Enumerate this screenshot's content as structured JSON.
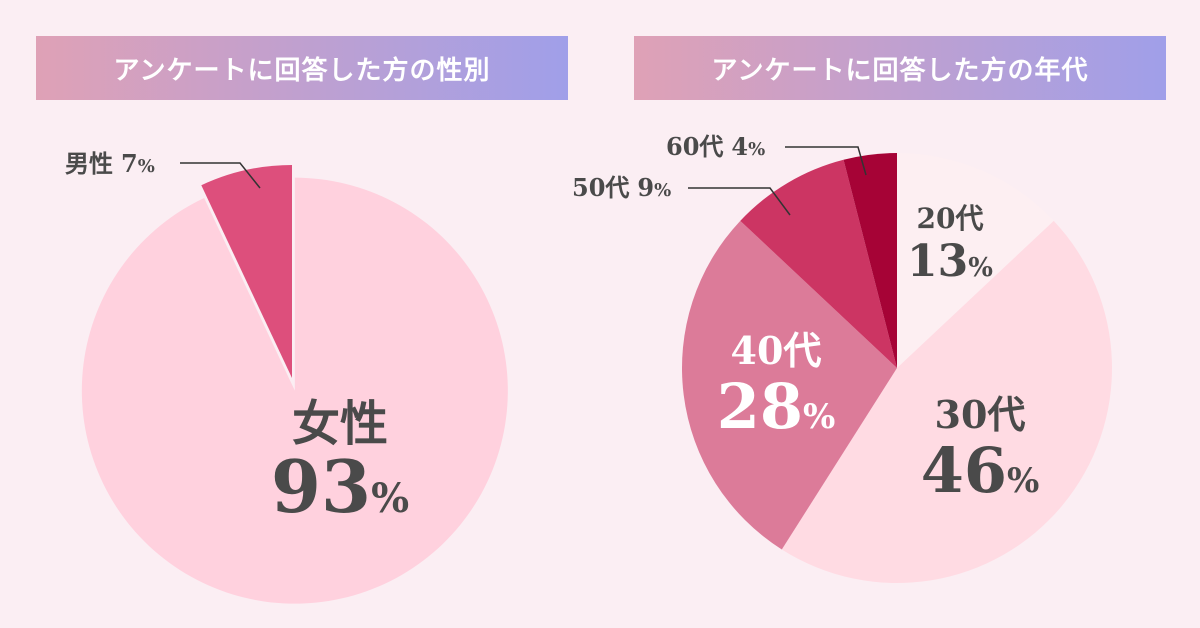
{
  "colors": {
    "banner_gradient": [
      "#dfa1b6",
      "#a09fe9"
    ],
    "gender_slices": [
      "#ffd1de",
      "#dd4f7c"
    ],
    "age_slices": [
      "#fdeff2",
      "#ffdbe3",
      "#dc7b99",
      "#cc3563",
      "#a60336"
    ]
  },
  "chart_data": [
    {
      "type": "pie",
      "title": "アンケートに回答した方の性別",
      "slices": [
        {
          "label": "女性",
          "value": 93,
          "value_text": "93",
          "unit": "%"
        },
        {
          "label": "男性",
          "value": 7,
          "value_text": "7",
          "unit": "%"
        }
      ]
    },
    {
      "type": "pie",
      "title": "アンケートに回答した方の年代",
      "slices": [
        {
          "label": "20代",
          "value": 13,
          "value_text": "13",
          "unit": "%"
        },
        {
          "label": "30代",
          "value": 46,
          "value_text": "46",
          "unit": "%"
        },
        {
          "label": "40代",
          "value": 28,
          "value_text": "28",
          "unit": "%"
        },
        {
          "label": "50代",
          "value": 9,
          "value_text": "9",
          "unit": "%"
        },
        {
          "label": "60代",
          "value": 4,
          "value_text": "4",
          "unit": "%"
        }
      ]
    }
  ]
}
